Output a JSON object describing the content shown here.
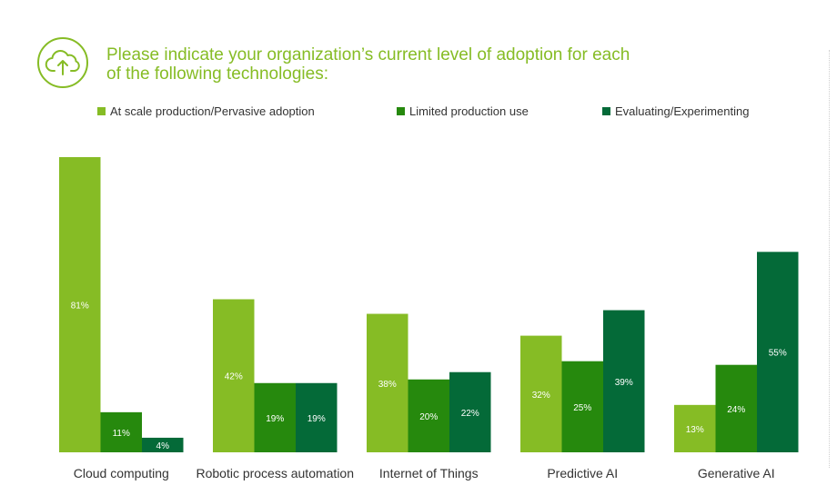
{
  "chart_data": {
    "type": "bar",
    "title": "Please indicate your organization’s current level of adoption for each of the following technologies:",
    "title_lines": [
      "Please indicate your organization’s current level of adoption for each",
      "of the following technologies:"
    ],
    "categories": [
      "Cloud computing",
      "Robotic process automation",
      "Internet of Things",
      "Predictive AI",
      "Generative AI"
    ],
    "series": [
      {
        "name": "At scale production/Pervasive adoption",
        "color": "#86bc25",
        "values": [
          81,
          42,
          38,
          32,
          13
        ]
      },
      {
        "name": "Limited production use",
        "color": "#26890d",
        "values": [
          11,
          19,
          20,
          25,
          24
        ]
      },
      {
        "name": "Evaluating/Experimenting",
        "color": "#046a38",
        "values": [
          4,
          19,
          22,
          39,
          55
        ]
      }
    ],
    "value_suffix": "%",
    "ylim": [
      0,
      81
    ],
    "grid": false,
    "legend_position": "top"
  },
  "icon": "cloud-upload-icon",
  "colors": {
    "title": "#86bc25",
    "text": "#333333"
  }
}
